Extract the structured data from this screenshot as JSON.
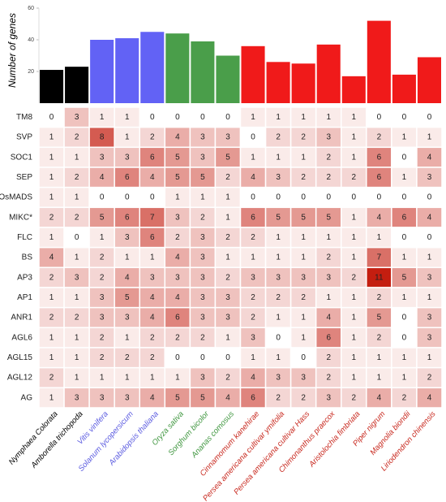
{
  "chart_data": [
    {
      "type": "bar",
      "ylabel": "Number of genes",
      "categories": [
        "Nymphaea Colorata",
        "Amborella trichopoda",
        "Vitis vinifera",
        "Solanum lycopersicum",
        "Arabidopsis thaliana",
        "Oryza sativa",
        "Sorghum bicolor",
        "Ananas comosus",
        "Cinnamomum kanehirae",
        "Persea americana cultivar ymifolia",
        "Persea americana cultivar Hass",
        "Chimonanthus praecox",
        "Aristolochia fimbriata",
        "Piper nigrum",
        "Magnolia biondii",
        "Liriodendron chinensis"
      ],
      "values": [
        21,
        23,
        40,
        41,
        45,
        44,
        39,
        30,
        36,
        26,
        25,
        37,
        17,
        52,
        18,
        29
      ],
      "colors": [
        "#000000",
        "#000000",
        "#6262f5",
        "#6262f5",
        "#6262f5",
        "#4a9e4a",
        "#4a9e4a",
        "#4a9e4a",
        "#f01a1a",
        "#f01a1a",
        "#f01a1a",
        "#f01a1a",
        "#f01a1a",
        "#f01a1a",
        "#f01a1a",
        "#f01a1a"
      ],
      "label_colors": [
        "#000000",
        "#000000",
        "#5a5ae0",
        "#5a5ae0",
        "#5a5ae0",
        "#3f963f",
        "#3f963f",
        "#3f963f",
        "#c8281e",
        "#c8281e",
        "#c8281e",
        "#c8281e",
        "#c8281e",
        "#c8281e",
        "#c8281e",
        "#c8281e"
      ],
      "ylim": [
        0,
        60
      ],
      "yticks": [
        20,
        40,
        60
      ]
    },
    {
      "type": "heatmap",
      "rows": [
        "TM8",
        "SVP",
        "SOC1",
        "SEP",
        "OsMADS",
        "MIKC*",
        "FLC",
        "BS",
        "AP3",
        "AP1",
        "ANR1",
        "AGL6",
        "AGL15",
        "AGL12",
        "AG"
      ],
      "values": [
        [
          0,
          3,
          1,
          1,
          0,
          0,
          0,
          0,
          1,
          1,
          1,
          1,
          1,
          0,
          0,
          0
        ],
        [
          1,
          2,
          8,
          1,
          2,
          4,
          3,
          3,
          0,
          2,
          2,
          3,
          1,
          2,
          1,
          1
        ],
        [
          1,
          1,
          3,
          3,
          6,
          5,
          3,
          5,
          1,
          1,
          1,
          2,
          1,
          6,
          0,
          4
        ],
        [
          1,
          2,
          4,
          6,
          4,
          5,
          5,
          2,
          4,
          3,
          2,
          2,
          2,
          6,
          1,
          3
        ],
        [
          1,
          1,
          0,
          0,
          0,
          1,
          1,
          1,
          0,
          0,
          0,
          0,
          0,
          0,
          0,
          0
        ],
        [
          2,
          2,
          5,
          6,
          7,
          3,
          2,
          1,
          6,
          5,
          5,
          5,
          1,
          4,
          6,
          4
        ],
        [
          1,
          0,
          1,
          3,
          6,
          2,
          3,
          2,
          2,
          1,
          1,
          1,
          1,
          1,
          0,
          0
        ],
        [
          4,
          1,
          2,
          1,
          1,
          4,
          3,
          1,
          1,
          1,
          1,
          2,
          1,
          7,
          1,
          1
        ],
        [
          2,
          3,
          2,
          4,
          3,
          3,
          3,
          2,
          3,
          3,
          3,
          3,
          2,
          11,
          5,
          3
        ],
        [
          1,
          1,
          3,
          5,
          4,
          4,
          3,
          3,
          2,
          2,
          2,
          1,
          1,
          2,
          1,
          1
        ],
        [
          2,
          2,
          3,
          3,
          4,
          6,
          3,
          3,
          2,
          1,
          1,
          4,
          1,
          5,
          0,
          3
        ],
        [
          1,
          1,
          2,
          1,
          2,
          2,
          2,
          1,
          3,
          0,
          1,
          6,
          1,
          2,
          0,
          3
        ],
        [
          1,
          1,
          2,
          2,
          2,
          0,
          0,
          0,
          1,
          1,
          0,
          2,
          1,
          1,
          1,
          1
        ],
        [
          2,
          1,
          1,
          1,
          1,
          1,
          3,
          2,
          4,
          3,
          3,
          2,
          1,
          1,
          1,
          2
        ],
        [
          1,
          3,
          3,
          3,
          4,
          5,
          5,
          4,
          6,
          2,
          2,
          3,
          2,
          4,
          2,
          4
        ]
      ],
      "colormap": [
        "#ffffff",
        "#c41e10"
      ]
    }
  ]
}
